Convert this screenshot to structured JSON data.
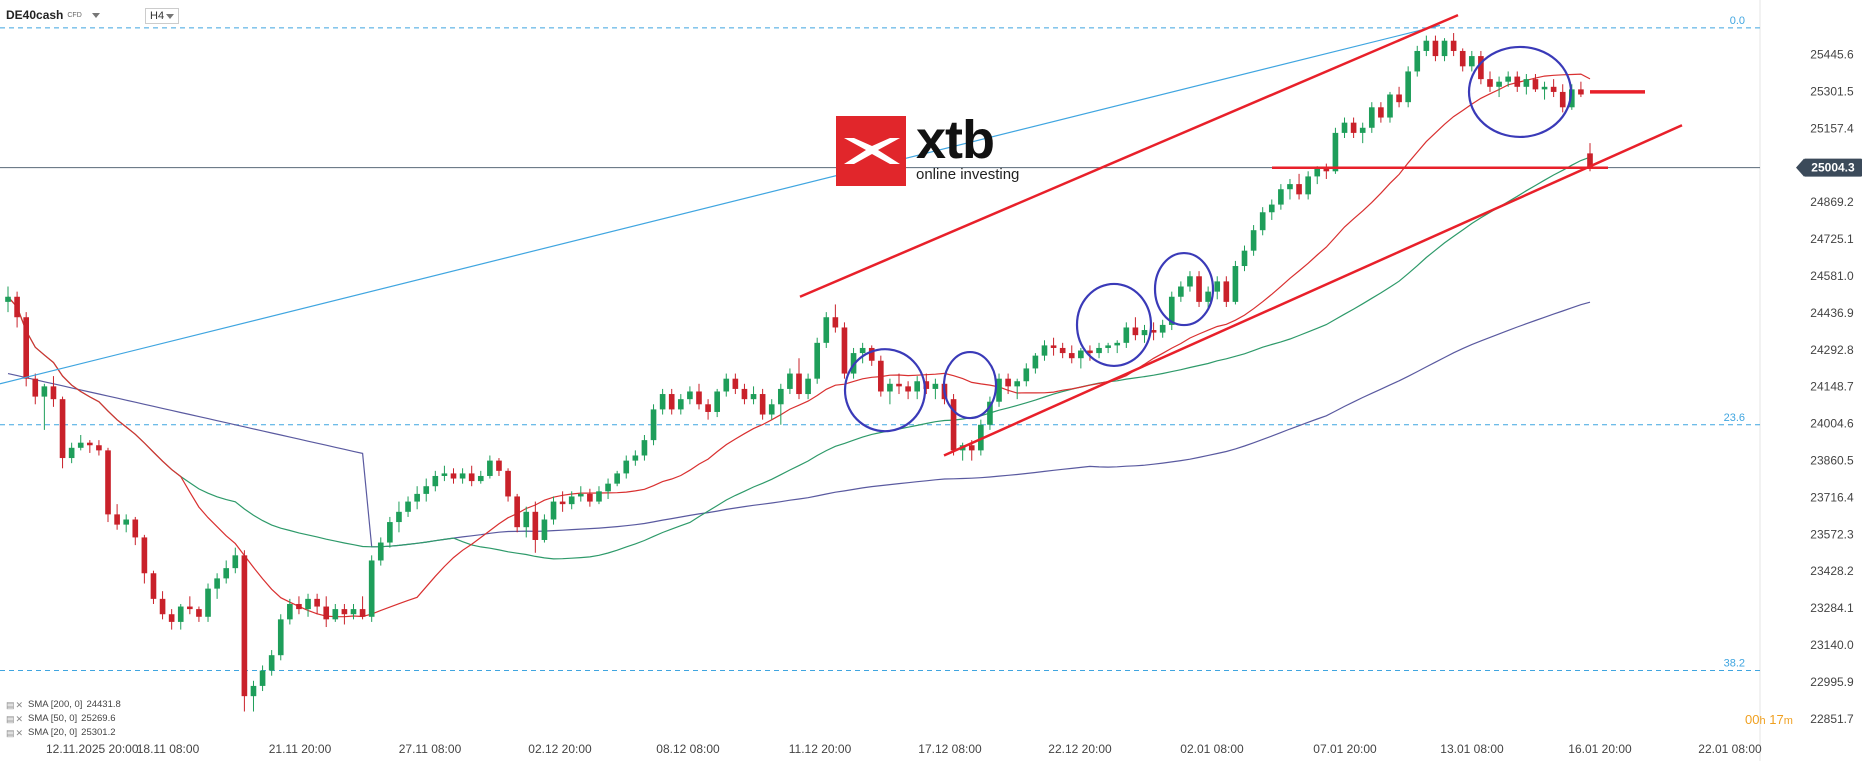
{
  "header": {
    "symbol": "DE40cash",
    "instrument_type": "CFD",
    "timeframe": "H4"
  },
  "logo": {
    "brand": "xtb",
    "tagline": "online investing"
  },
  "timer": {
    "hours": "00",
    "h_unit": "h",
    "minutes": "17",
    "m_unit": "m"
  },
  "legend": [
    {
      "label": "SMA [200, 0]",
      "value": "24431.8",
      "color": "#5a5aa0"
    },
    {
      "label": "SMA [50, 0]",
      "value": "25269.6",
      "color": "#2e9a6a"
    },
    {
      "label": "SMA [20, 0]",
      "value": "25301.2",
      "color": "#d93030"
    }
  ],
  "colors": {
    "up_candle": "#1e9e5a",
    "down_candle": "#c9212a",
    "fib_line": "#3fa5e0",
    "trend_red": "#e8202a",
    "circles": "#3a3ab8",
    "current_price_bg": "#3b4a5a"
  },
  "chart_data": {
    "type": "candlestick",
    "y_axis_ticks": [
      "25445.6",
      "25301.5",
      "25157.4",
      "25004.3",
      "24869.2",
      "24725.1",
      "24581.0",
      "24436.9",
      "24292.8",
      "24148.7",
      "24004.6",
      "23860.5",
      "23716.4",
      "23572.3",
      "23428.2",
      "23284.1",
      "23140.0",
      "22995.9",
      "22851.7"
    ],
    "ylim": [
      22800,
      25620
    ],
    "x_axis_ticks": [
      "12.11.2025  20:00",
      "18.11  08:00",
      "21.11  20:00",
      "27.11  08:00",
      "02.12  20:00",
      "08.12  08:00",
      "11.12  20:00",
      "17.12  08:00",
      "22.12  20:00",
      "02.01  08:00",
      "07.01  20:00",
      "13.01  08:00",
      "16.01  20:00",
      "22.01  08:00"
    ],
    "current_price": "25004.3",
    "fibonacci_levels": [
      {
        "label": "0.0",
        "value": 25550
      },
      {
        "label": "23.6",
        "value": 24000
      },
      {
        "label": "38.2",
        "value": 23040
      }
    ],
    "series": [
      {
        "name": "SMA [200, 0]",
        "value": 24431.8
      },
      {
        "name": "SMA [50, 0]",
        "value": 25269.6
      },
      {
        "name": "SMA [20, 0]",
        "value": 25301.2
      }
    ],
    "candles_ohlc": [
      [
        24480,
        24540,
        24440,
        24500
      ],
      [
        24500,
        24520,
        24380,
        24420
      ],
      [
        24420,
        24440,
        24150,
        24180
      ],
      [
        24180,
        24200,
        24080,
        24110
      ],
      [
        24110,
        24160,
        23980,
        24150
      ],
      [
        24150,
        24190,
        24070,
        24100
      ],
      [
        24100,
        24110,
        23830,
        23870
      ],
      [
        23870,
        23930,
        23850,
        23910
      ],
      [
        23910,
        23960,
        23900,
        23930
      ],
      [
        23930,
        23940,
        23890,
        23920
      ],
      [
        23920,
        23940,
        23880,
        23900
      ],
      [
        23900,
        23910,
        23620,
        23650
      ],
      [
        23650,
        23690,
        23590,
        23610
      ],
      [
        23610,
        23650,
        23580,
        23630
      ],
      [
        23630,
        23640,
        23530,
        23560
      ],
      [
        23560,
        23570,
        23380,
        23420
      ],
      [
        23420,
        23430,
        23300,
        23320
      ],
      [
        23320,
        23350,
        23240,
        23260
      ],
      [
        23260,
        23280,
        23200,
        23230
      ],
      [
        23230,
        23300,
        23200,
        23290
      ],
      [
        23290,
        23330,
        23260,
        23280
      ],
      [
        23280,
        23290,
        23230,
        23250
      ],
      [
        23250,
        23380,
        23230,
        23360
      ],
      [
        23360,
        23420,
        23320,
        23400
      ],
      [
        23400,
        23470,
        23380,
        23440
      ],
      [
        23440,
        23520,
        23420,
        23490
      ],
      [
        23490,
        23510,
        22880,
        22940
      ],
      [
        22940,
        23000,
        22880,
        22980
      ],
      [
        22980,
        23060,
        22960,
        23040
      ],
      [
        23040,
        23120,
        23020,
        23100
      ],
      [
        23100,
        23260,
        23080,
        23240
      ],
      [
        23240,
        23320,
        23220,
        23300
      ],
      [
        23300,
        23330,
        23260,
        23280
      ],
      [
        23280,
        23340,
        23250,
        23320
      ],
      [
        23320,
        23340,
        23260,
        23290
      ],
      [
        23290,
        23330,
        23210,
        23240
      ],
      [
        23240,
        23300,
        23230,
        23280
      ],
      [
        23280,
        23300,
        23220,
        23260
      ],
      [
        23260,
        23300,
        23240,
        23280
      ],
      [
        23280,
        23330,
        23240,
        23250
      ],
      [
        23250,
        23490,
        23230,
        23470
      ],
      [
        23470,
        23560,
        23450,
        23540
      ],
      [
        23540,
        23640,
        23520,
        23620
      ],
      [
        23620,
        23700,
        23580,
        23660
      ],
      [
        23660,
        23720,
        23640,
        23700
      ],
      [
        23700,
        23760,
        23670,
        23730
      ],
      [
        23730,
        23790,
        23700,
        23760
      ],
      [
        23760,
        23820,
        23740,
        23800
      ],
      [
        23800,
        23840,
        23780,
        23810
      ],
      [
        23810,
        23830,
        23770,
        23790
      ],
      [
        23790,
        23830,
        23770,
        23810
      ],
      [
        23810,
        23840,
        23760,
        23780
      ],
      [
        23780,
        23820,
        23770,
        23800
      ],
      [
        23800,
        23880,
        23790,
        23860
      ],
      [
        23860,
        23870,
        23800,
        23820
      ],
      [
        23820,
        23830,
        23700,
        23720
      ],
      [
        23720,
        23730,
        23580,
        23600
      ],
      [
        23600,
        23680,
        23560,
        23660
      ],
      [
        23660,
        23700,
        23500,
        23550
      ],
      [
        23550,
        23650,
        23540,
        23630
      ],
      [
        23630,
        23720,
        23610,
        23700
      ],
      [
        23700,
        23740,
        23660,
        23690
      ],
      [
        23690,
        23740,
        23670,
        23720
      ],
      [
        23720,
        23760,
        23700,
        23730
      ],
      [
        23730,
        23750,
        23680,
        23700
      ],
      [
        23700,
        23760,
        23690,
        23740
      ],
      [
        23740,
        23790,
        23710,
        23770
      ],
      [
        23770,
        23820,
        23760,
        23810
      ],
      [
        23810,
        23880,
        23790,
        23860
      ],
      [
        23860,
        23900,
        23840,
        23880
      ],
      [
        23880,
        23960,
        23860,
        23940
      ],
      [
        23940,
        24080,
        23920,
        24060
      ],
      [
        24060,
        24140,
        24040,
        24120
      ],
      [
        24120,
        24140,
        24040,
        24060
      ],
      [
        24060,
        24120,
        24040,
        24100
      ],
      [
        24100,
        24150,
        24080,
        24130
      ],
      [
        24130,
        24160,
        24060,
        24080
      ],
      [
        24080,
        24100,
        24020,
        24050
      ],
      [
        24050,
        24140,
        24030,
        24130
      ],
      [
        24130,
        24200,
        24110,
        24180
      ],
      [
        24180,
        24200,
        24120,
        24140
      ],
      [
        24140,
        24160,
        24080,
        24100
      ],
      [
        24100,
        24150,
        24080,
        24120
      ],
      [
        24120,
        24140,
        24020,
        24040
      ],
      [
        24040,
        24100,
        24020,
        24080
      ],
      [
        24080,
        24160,
        24000,
        24140
      ],
      [
        24140,
        24220,
        24120,
        24200
      ],
      [
        24200,
        24260,
        24100,
        24120
      ],
      [
        24120,
        24200,
        24100,
        24180
      ],
      [
        24180,
        24340,
        24160,
        24320
      ],
      [
        24320,
        24440,
        24300,
        24420
      ],
      [
        24420,
        24470,
        24360,
        24380
      ],
      [
        24380,
        24400,
        24180,
        24200
      ],
      [
        24200,
        24300,
        24180,
        24280
      ],
      [
        24280,
        24320,
        24240,
        24300
      ],
      [
        24300,
        24310,
        24230,
        24250
      ],
      [
        24250,
        24270,
        24110,
        24130
      ],
      [
        24130,
        24180,
        24080,
        24160
      ],
      [
        24160,
        24200,
        24120,
        24150
      ],
      [
        24150,
        24170,
        24100,
        24130
      ],
      [
        24130,
        24190,
        24100,
        24170
      ],
      [
        24170,
        24200,
        24120,
        24140
      ],
      [
        24140,
        24180,
        24100,
        24160
      ],
      [
        24160,
        24170,
        24080,
        24100
      ],
      [
        24100,
        24120,
        23880,
        23900
      ],
      [
        23900,
        23930,
        23860,
        23920
      ],
      [
        23920,
        23940,
        23860,
        23900
      ],
      [
        23900,
        24020,
        23880,
        24000
      ],
      [
        24000,
        24110,
        23980,
        24090
      ],
      [
        24090,
        24200,
        24070,
        24180
      ],
      [
        24180,
        24200,
        24120,
        24150
      ],
      [
        24150,
        24180,
        24100,
        24170
      ],
      [
        24170,
        24240,
        24150,
        24220
      ],
      [
        24220,
        24280,
        24200,
        24270
      ],
      [
        24270,
        24330,
        24250,
        24310
      ],
      [
        24310,
        24340,
        24270,
        24300
      ],
      [
        24300,
        24320,
        24260,
        24280
      ],
      [
        24280,
        24310,
        24240,
        24260
      ],
      [
        24260,
        24300,
        24220,
        24290
      ],
      [
        24290,
        24310,
        24250,
        24280
      ],
      [
        24280,
        24320,
        24260,
        24300
      ],
      [
        24300,
        24320,
        24280,
        24310
      ],
      [
        24310,
        24330,
        24280,
        24320
      ],
      [
        24320,
        24400,
        24300,
        24380
      ],
      [
        24380,
        24420,
        24330,
        24350
      ],
      [
        24350,
        24390,
        24320,
        24370
      ],
      [
        24370,
        24400,
        24330,
        24360
      ],
      [
        24360,
        24410,
        24340,
        24390
      ],
      [
        24390,
        24520,
        24370,
        24500
      ],
      [
        24500,
        24560,
        24480,
        24540
      ],
      [
        24540,
        24600,
        24520,
        24580
      ],
      [
        24580,
        24600,
        24460,
        24480
      ],
      [
        24480,
        24540,
        24450,
        24520
      ],
      [
        24520,
        24580,
        24490,
        24560
      ],
      [
        24560,
        24580,
        24460,
        24480
      ],
      [
        24480,
        24640,
        24470,
        24620
      ],
      [
        24620,
        24700,
        24600,
        24680
      ],
      [
        24680,
        24780,
        24660,
        24760
      ],
      [
        24760,
        24850,
        24740,
        24830
      ],
      [
        24830,
        24880,
        24800,
        24860
      ],
      [
        24860,
        24940,
        24840,
        24920
      ],
      [
        24920,
        24960,
        24880,
        24940
      ],
      [
        24940,
        24980,
        24880,
        24900
      ],
      [
        24900,
        24990,
        24880,
        24970
      ],
      [
        24970,
        25010,
        24940,
        25000
      ],
      [
        25000,
        25020,
        24960,
        24990
      ],
      [
        24990,
        25160,
        24980,
        25140
      ],
      [
        25140,
        25200,
        25120,
        25180
      ],
      [
        25180,
        25200,
        25120,
        25140
      ],
      [
        25140,
        25180,
        25100,
        25160
      ],
      [
        25160,
        25260,
        25140,
        25240
      ],
      [
        25240,
        25260,
        25180,
        25200
      ],
      [
        25200,
        25300,
        25180,
        25290
      ],
      [
        25290,
        25320,
        25240,
        25260
      ],
      [
        25260,
        25400,
        25240,
        25380
      ],
      [
        25380,
        25480,
        25360,
        25460
      ],
      [
        25460,
        25520,
        25440,
        25500
      ],
      [
        25500,
        25520,
        25420,
        25440
      ],
      [
        25440,
        25510,
        25420,
        25500
      ],
      [
        25500,
        25530,
        25440,
        25460
      ],
      [
        25460,
        25470,
        25380,
        25400
      ],
      [
        25400,
        25460,
        25380,
        25440
      ],
      [
        25440,
        25460,
        25330,
        25350
      ],
      [
        25350,
        25380,
        25300,
        25320
      ],
      [
        25320,
        25360,
        25280,
        25340
      ],
      [
        25340,
        25380,
        25320,
        25360
      ],
      [
        25360,
        25380,
        25300,
        25320
      ],
      [
        25320,
        25370,
        25290,
        25350
      ],
      [
        25350,
        25370,
        25300,
        25310
      ],
      [
        25310,
        25340,
        25270,
        25320
      ],
      [
        25320,
        25350,
        25280,
        25300
      ],
      [
        25300,
        25330,
        25220,
        25240
      ],
      [
        25240,
        25330,
        25230,
        25310
      ],
      [
        25310,
        25340,
        25280,
        25290
      ],
      [
        25060,
        25100,
        24990,
        25004
      ]
    ]
  }
}
